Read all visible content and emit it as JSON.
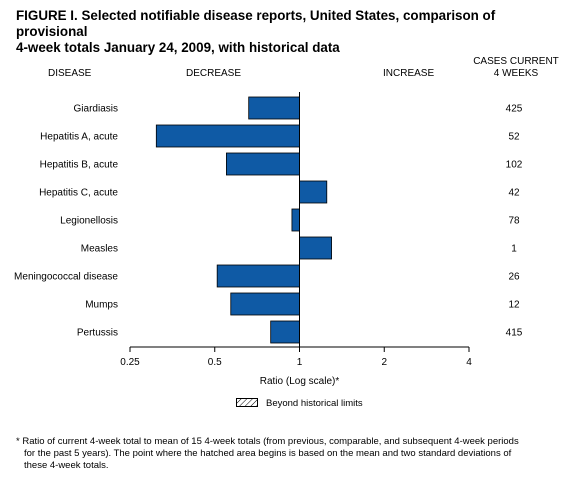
{
  "title_line1": "FIGURE I. Selected notifiable disease reports, United States, comparison of provisional",
  "title_line2": "4-week totals January 24, 2009, with historical data",
  "headers": {
    "disease": "DISEASE",
    "decrease": "DECREASE",
    "increase": "INCREASE",
    "cases_line1": "CASES CURRENT",
    "cases_line2": "4 WEEKS"
  },
  "legend_label": "Beyond historical limits",
  "footnote": {
    "line1": "* Ratio of current 4-week total to mean of 15 4-week totals (from previous, comparable, and subsequent 4-week periods",
    "line2": "for the past 5 years). The point where the hatched area begins is based on the mean and two standard deviations of",
    "line3": "these 4-week totals."
  },
  "colors": {
    "bar_fill": "#0F5AA5",
    "bar_stroke": "#000000"
  },
  "chart_data": {
    "type": "bar",
    "orientation": "horizontal",
    "xscale": "log2",
    "xlim": [
      0.25,
      4
    ],
    "xticks": [
      "0.25",
      "0.5",
      "1",
      "2",
      "4"
    ],
    "xlabel": "Ratio (Log scale)*",
    "baseline": 1,
    "categories": [
      "Giardiasis",
      "Hepatitis A, acute",
      "Hepatitis B, acute",
      "Hepatitis C, acute",
      "Legionellosis",
      "Measles",
      "Meningococcal disease",
      "Mumps",
      "Pertussis"
    ],
    "values": [
      0.66,
      0.31,
      0.55,
      1.25,
      0.94,
      1.3,
      0.51,
      0.57,
      0.79
    ],
    "cases_current_4_weeks": [
      425,
      52,
      102,
      42,
      78,
      1,
      26,
      12,
      415
    ]
  }
}
